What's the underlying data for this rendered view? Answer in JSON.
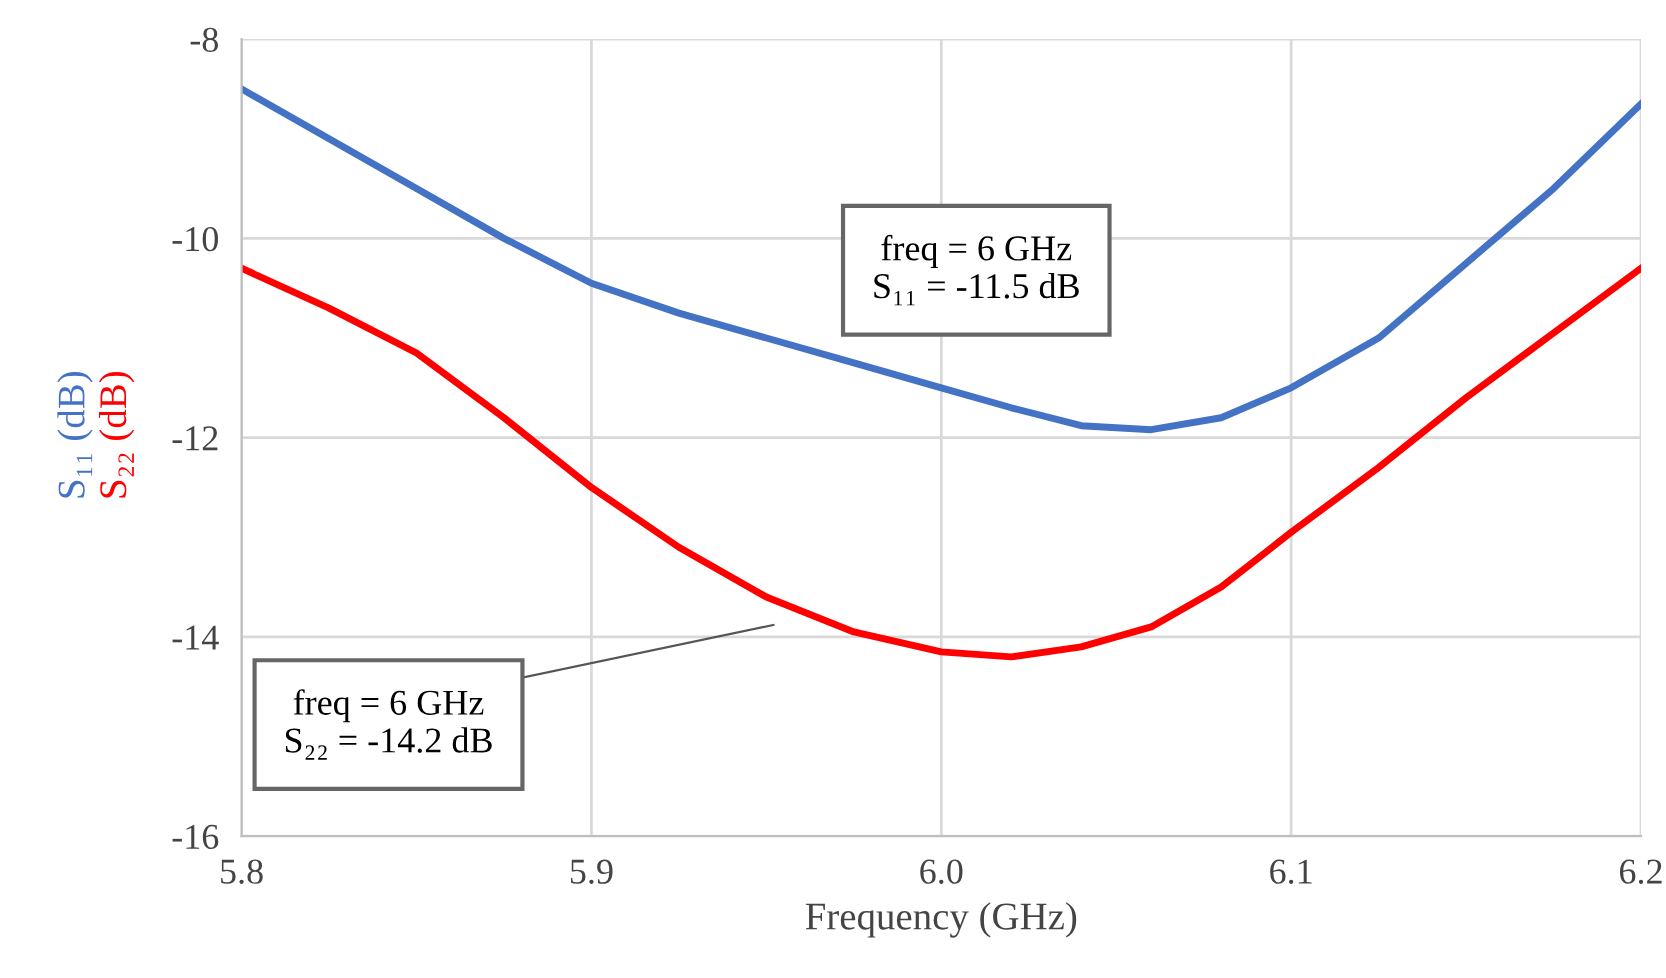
{
  "chart_data": {
    "type": "line",
    "xlabel": "Frequency (GHz)",
    "x": [
      5.8,
      5.825,
      5.85,
      5.875,
      5.9,
      5.925,
      5.95,
      5.975,
      6.0,
      6.02,
      6.04,
      6.06,
      6.08,
      6.1,
      6.125,
      6.15,
      6.175,
      6.2
    ],
    "series": [
      {
        "name": "S₁₁ (dB)",
        "color": "#4472c4",
        "values": [
          -8.5,
          -9.0,
          -9.5,
          -10.0,
          -10.45,
          -10.75,
          -11.0,
          -11.25,
          -11.5,
          -11.7,
          -11.88,
          -11.92,
          -11.8,
          -11.5,
          -11.0,
          -10.25,
          -9.5,
          -8.65
        ]
      },
      {
        "name": "S₂₂ (dB)",
        "color": "#ff0000",
        "values": [
          -10.3,
          -10.7,
          -11.15,
          -11.8,
          -12.5,
          -13.1,
          -13.6,
          -13.95,
          -14.15,
          -14.2,
          -14.1,
          -13.9,
          -13.5,
          -12.95,
          -12.3,
          -11.6,
          -10.95,
          -10.3
        ]
      }
    ],
    "xlim": [
      5.8,
      6.2
    ],
    "xticks": [
      5.8,
      5.9,
      {
        "value": 6.0,
        "label": "6.0"
      },
      6.1,
      6.2
    ],
    "ylim": [
      -16,
      -8
    ],
    "yticks": [
      {
        "value": -16,
        "label": "-16"
      },
      {
        "value": -14,
        "label": "-14"
      },
      {
        "value": -12,
        "label": "-12"
      },
      {
        "value": -10,
        "label": "-10"
      },
      {
        "value": -8,
        "label": "-8"
      }
    ],
    "grid": true,
    "marker": "none",
    "line_style": "solid",
    "annotations": [
      "freq = 6 GHz\nS₁₁ = -11.5 dB",
      "freq = 6 GHz\nS₂₂ = -14.2 dB"
    ]
  }
}
